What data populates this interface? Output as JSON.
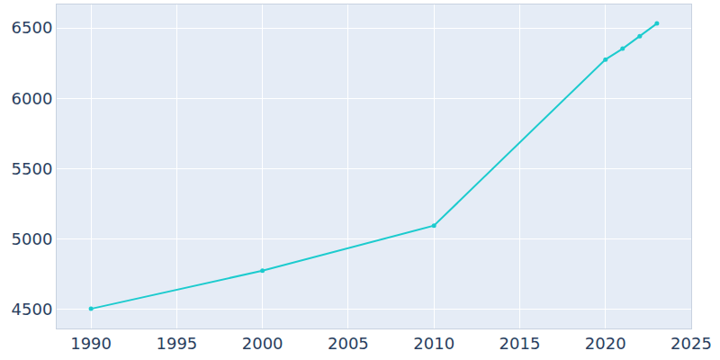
{
  "chart_data": {
    "type": "line",
    "x": [
      1990,
      2000,
      2010,
      2020,
      2021,
      2022,
      2023
    ],
    "values": [
      4505,
      4776,
      5096,
      6276,
      6353,
      6442,
      6532
    ],
    "color": "#1ccbce",
    "marker": "circle",
    "line_style": "solid",
    "xlim": [
      1988,
      2025
    ],
    "xticks": [
      1990,
      1995,
      2000,
      2005,
      2010,
      2015,
      2020,
      2025
    ],
    "ylim": [
      4365,
      6667
    ],
    "yticks": [
      4500,
      5000,
      5500,
      6000,
      6500
    ],
    "grid": true
  }
}
